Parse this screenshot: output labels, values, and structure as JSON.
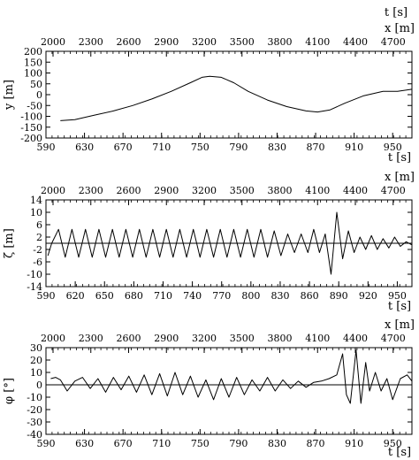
{
  "figure": {
    "top_axis_unit_label": "t [s]"
  },
  "chart_data": [
    {
      "type": "line",
      "ylabel": "y [m]",
      "top_label": "x [m]",
      "bottom_label": "t [s]",
      "xlim": [
        590,
        970
      ],
      "ylim": [
        -200,
        200
      ],
      "bottom_ticks": [
        "590",
        "630",
        "670",
        "710",
        "750",
        "790",
        "830",
        "870",
        "910",
        "950"
      ],
      "top_ticks": [
        "2000",
        "2300",
        "2600",
        "2900",
        "3200",
        "3500",
        "3800",
        "4100",
        "4400",
        "4700"
      ],
      "y_ticks": [
        "200",
        "150",
        "100",
        "50",
        "0",
        "-50",
        "-100",
        "-150",
        "-200"
      ],
      "zero_line": false,
      "series": [
        {
          "x": [
            605,
            620,
            640,
            660,
            680,
            700,
            720,
            740,
            752,
            760,
            772,
            785,
            800,
            820,
            840,
            860,
            872,
            885,
            900,
            920,
            940,
            955,
            970
          ],
          "y": [
            -120,
            -115,
            -95,
            -75,
            -50,
            -20,
            15,
            55,
            80,
            85,
            80,
            55,
            15,
            -25,
            -55,
            -75,
            -80,
            -70,
            -40,
            -5,
            15,
            15,
            25
          ]
        }
      ]
    },
    {
      "type": "line",
      "ylabel": "ζ [m]",
      "top_label": "x [m]",
      "bottom_label": "t [s]",
      "xlim": [
        590,
        970
      ],
      "ylim": [
        -14,
        14
      ],
      "bottom_ticks": [
        "590",
        "620",
        "650",
        "680",
        "710",
        "740",
        "770",
        "800",
        "830",
        "860",
        "890",
        "920",
        "950"
      ],
      "top_ticks": [
        "2000",
        "2300",
        "2600",
        "2900",
        "3200",
        "3500",
        "3800",
        "4100",
        "4400",
        "4700"
      ],
      "y_ticks": [
        "14",
        "10",
        "6",
        "2",
        "-2",
        "-6",
        "-10",
        "-14"
      ],
      "zero_line": true,
      "series": [
        {
          "x": [
            592,
            596,
            603,
            610,
            617,
            624,
            631,
            638,
            645,
            652,
            659,
            666,
            673,
            680,
            687,
            694,
            701,
            708,
            715,
            722,
            729,
            736,
            743,
            750,
            757,
            764,
            771,
            778,
            785,
            792,
            799,
            806,
            813,
            820,
            827,
            834,
            841,
            848,
            855,
            862,
            868,
            874,
            880,
            886,
            892,
            898,
            904,
            910,
            916,
            922,
            928,
            934,
            940,
            946,
            952,
            958,
            964,
            970
          ],
          "y": [
            -4,
            0,
            4.5,
            -4.5,
            4.5,
            -4.5,
            4.5,
            -4.5,
            4.5,
            -4.5,
            4.5,
            -4.5,
            4.5,
            -4.5,
            4.5,
            -4.5,
            4.5,
            -4.5,
            4.5,
            -4.5,
            4.5,
            -4.5,
            4.5,
            -4.5,
            4.5,
            -4.5,
            4.5,
            -4.5,
            4.5,
            -4.5,
            4.5,
            -4.5,
            4.5,
            -4.5,
            4,
            -4,
            3,
            -3,
            3,
            -3,
            4.5,
            -3,
            3,
            -10,
            10,
            -5,
            4,
            -3,
            2,
            -2,
            2.5,
            -2,
            1.5,
            -1.5,
            2,
            -1,
            0.5,
            -0.5
          ]
        }
      ]
    },
    {
      "type": "line",
      "ylabel": "φ [°]",
      "top_label": "x [m]",
      "bottom_label": "t [s]",
      "xlim": [
        590,
        970
      ],
      "ylim": [
        -40,
        30
      ],
      "bottom_ticks": [
        "590",
        "630",
        "670",
        "710",
        "750",
        "790",
        "830",
        "870",
        "910",
        "950"
      ],
      "top_ticks": [
        "2000",
        "2300",
        "2600",
        "2900",
        "3200",
        "3500",
        "3800",
        "4100",
        "4400",
        "4700"
      ],
      "y_ticks": [
        "30",
        "20",
        "10",
        "0",
        "-10",
        "-20",
        "-30",
        "-40"
      ],
      "zero_line": true,
      "series": [
        {
          "x": [
            595,
            600,
            605,
            612,
            620,
            628,
            636,
            644,
            652,
            660,
            668,
            676,
            684,
            692,
            700,
            708,
            716,
            724,
            732,
            740,
            748,
            756,
            764,
            772,
            780,
            788,
            796,
            804,
            812,
            820,
            828,
            836,
            844,
            852,
            860,
            868,
            876,
            884,
            892,
            898,
            902,
            906,
            912,
            917,
            922,
            926,
            932,
            938,
            944,
            950,
            958,
            965,
            970
          ],
          "y": [
            5,
            6,
            4,
            -5,
            3,
            6,
            -3,
            5,
            -6,
            6,
            -4,
            7,
            -6,
            8,
            -8,
            9,
            -9,
            10,
            -8,
            7,
            -10,
            4,
            -12,
            5,
            -10,
            6,
            -8,
            4,
            -5,
            6,
            -5,
            4,
            -3,
            3,
            -2,
            2,
            3,
            5,
            8,
            25,
            -8,
            -15,
            28,
            -15,
            18,
            -5,
            10,
            -5,
            5,
            -12,
            5,
            8,
            3
          ]
        }
      ]
    }
  ]
}
